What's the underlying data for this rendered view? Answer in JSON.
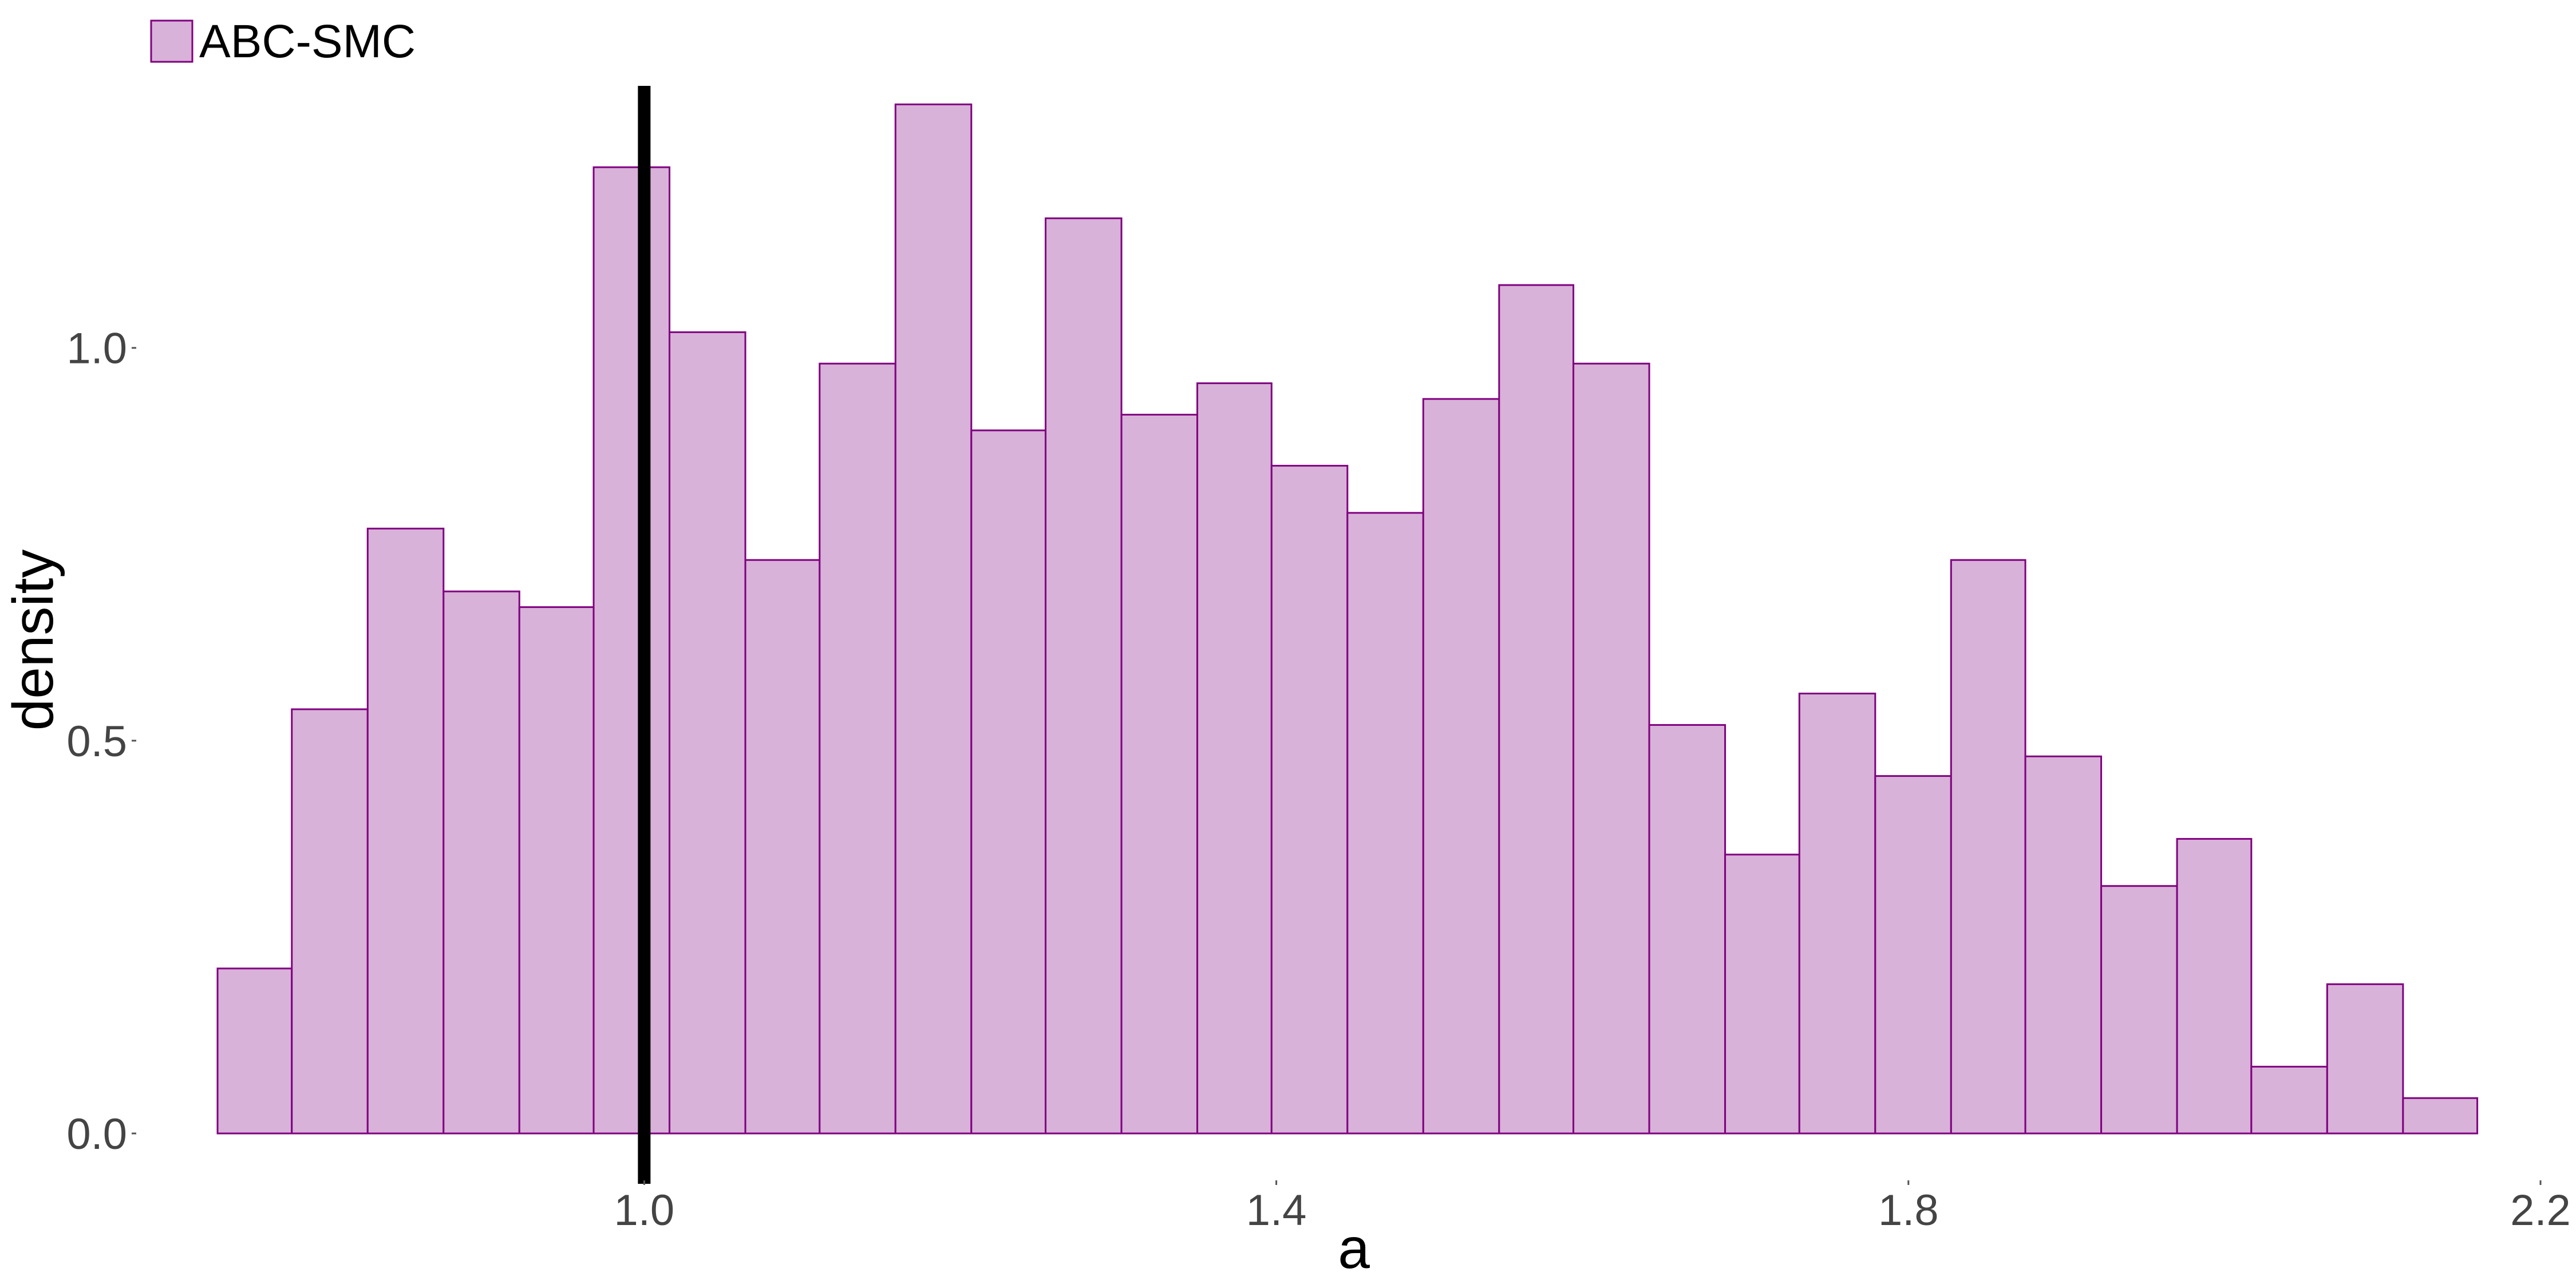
{
  "chart_data": {
    "type": "bar",
    "subtype": "histogram",
    "xlabel": "a",
    "ylabel": "density",
    "xlim": [
      0.68,
      2.2
    ],
    "ylim": [
      0.0,
      1.37
    ],
    "x_ticks": [
      1.0,
      1.4,
      1.8,
      2.2
    ],
    "x_tick_labels": [
      "1.0",
      "1.4",
      "1.8",
      "2.2"
    ],
    "y_ticks": [
      0.0,
      0.5,
      1.0
    ],
    "y_tick_labels": [
      "0.0",
      "0.5",
      "1.0"
    ],
    "grid": false,
    "legend": {
      "placement": "top-left",
      "entries": [
        "ABC-SMC"
      ]
    },
    "vline": {
      "x": 1.0,
      "color": "#000000"
    },
    "bin_width": 0.0477,
    "series": [
      {
        "name": "ABC-SMC",
        "fill": "#d8b2d8",
        "stroke": "#800080",
        "bins": [
          {
            "x0": 0.73,
            "x1": 0.777,
            "density": 0.21
          },
          {
            "x0": 0.777,
            "x1": 0.825,
            "density": 0.54
          },
          {
            "x0": 0.825,
            "x1": 0.873,
            "density": 0.77
          },
          {
            "x0": 0.873,
            "x1": 0.921,
            "density": 0.69
          },
          {
            "x0": 0.921,
            "x1": 0.968,
            "density": 0.67
          },
          {
            "x0": 0.968,
            "x1": 1.016,
            "density": 1.23
          },
          {
            "x0": 1.016,
            "x1": 1.064,
            "density": 1.02
          },
          {
            "x0": 1.064,
            "x1": 1.111,
            "density": 0.73
          },
          {
            "x0": 1.111,
            "x1": 1.159,
            "density": 0.98
          },
          {
            "x0": 1.159,
            "x1": 1.207,
            "density": 1.31
          },
          {
            "x0": 1.207,
            "x1": 1.254,
            "density": 0.895
          },
          {
            "x0": 1.254,
            "x1": 1.302,
            "density": 1.165
          },
          {
            "x0": 1.302,
            "x1": 1.35,
            "density": 0.915
          },
          {
            "x0": 1.35,
            "x1": 1.397,
            "density": 0.955
          },
          {
            "x0": 1.397,
            "x1": 1.445,
            "density": 0.85
          },
          {
            "x0": 1.445,
            "x1": 1.493,
            "density": 0.79
          },
          {
            "x0": 1.493,
            "x1": 1.541,
            "density": 0.935
          },
          {
            "x0": 1.541,
            "x1": 1.588,
            "density": 1.08
          },
          {
            "x0": 1.588,
            "x1": 1.636,
            "density": 0.98
          },
          {
            "x0": 1.636,
            "x1": 1.684,
            "density": 0.52
          },
          {
            "x0": 1.684,
            "x1": 1.731,
            "density": 0.355
          },
          {
            "x0": 1.731,
            "x1": 1.779,
            "density": 0.56
          },
          {
            "x0": 1.779,
            "x1": 1.827,
            "density": 0.455
          },
          {
            "x0": 1.827,
            "x1": 1.874,
            "density": 0.73
          },
          {
            "x0": 1.874,
            "x1": 1.922,
            "density": 0.48
          },
          {
            "x0": 1.922,
            "x1": 1.97,
            "density": 0.315
          },
          {
            "x0": 1.97,
            "x1": 2.017,
            "density": 0.375
          },
          {
            "x0": 2.017,
            "x1": 2.065,
            "density": 0.085
          },
          {
            "x0": 2.065,
            "x1": 2.113,
            "density": 0.19
          },
          {
            "x0": 2.113,
            "x1": 2.16,
            "density": 0.045
          }
        ]
      }
    ]
  }
}
